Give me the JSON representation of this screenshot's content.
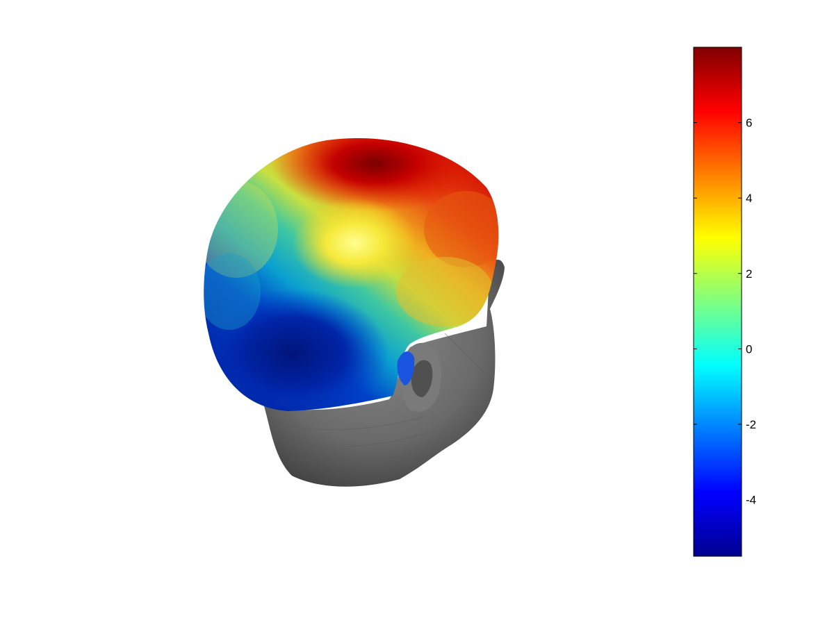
{
  "figure": {
    "type": "3d-scalp-topography",
    "background": "#ffffff",
    "surface_gray": "#6e6e6e",
    "colormap": "jet",
    "colorbar": {
      "min": -5.5,
      "max": 8,
      "ticks": [
        {
          "value": 6,
          "label": "6"
        },
        {
          "value": 4,
          "label": "4"
        },
        {
          "value": 2,
          "label": "2"
        },
        {
          "value": 0,
          "label": "0"
        },
        {
          "value": -2,
          "label": "-2"
        },
        {
          "value": -4,
          "label": "-4"
        }
      ]
    }
  }
}
